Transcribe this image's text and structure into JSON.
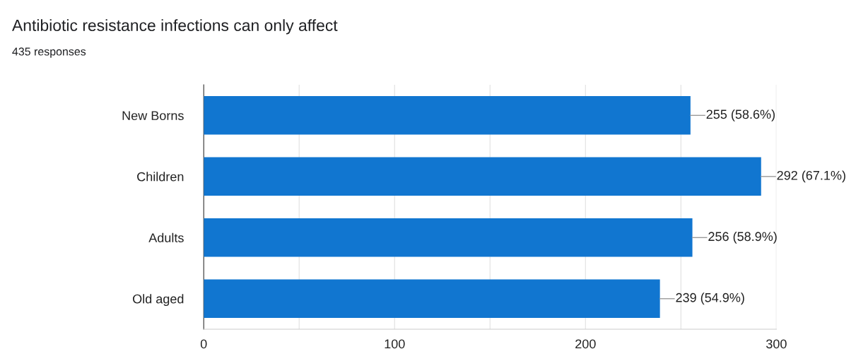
{
  "chart_data": {
    "type": "bar",
    "orientation": "horizontal",
    "title": "Antibiotic resistance infections can only affect",
    "subtitle": "435 responses",
    "categories": [
      "New Borns",
      "Children",
      "Adults",
      "Old aged"
    ],
    "values": [
      255,
      292,
      256,
      239
    ],
    "value_labels": [
      "255 (58.6%)",
      "292 (67.1%)",
      "256 (58.9%)",
      "239 (54.9%)"
    ],
    "color": "#1176d0",
    "xlim": [
      0,
      300
    ],
    "xticks": [
      0,
      {
        "value": 50,
        "label": null
      },
      100,
      {
        "value": 150,
        "label": null
      },
      200,
      {
        "value": 250,
        "label": null
      },
      300
    ],
    "grid": "x",
    "legend": false
  }
}
